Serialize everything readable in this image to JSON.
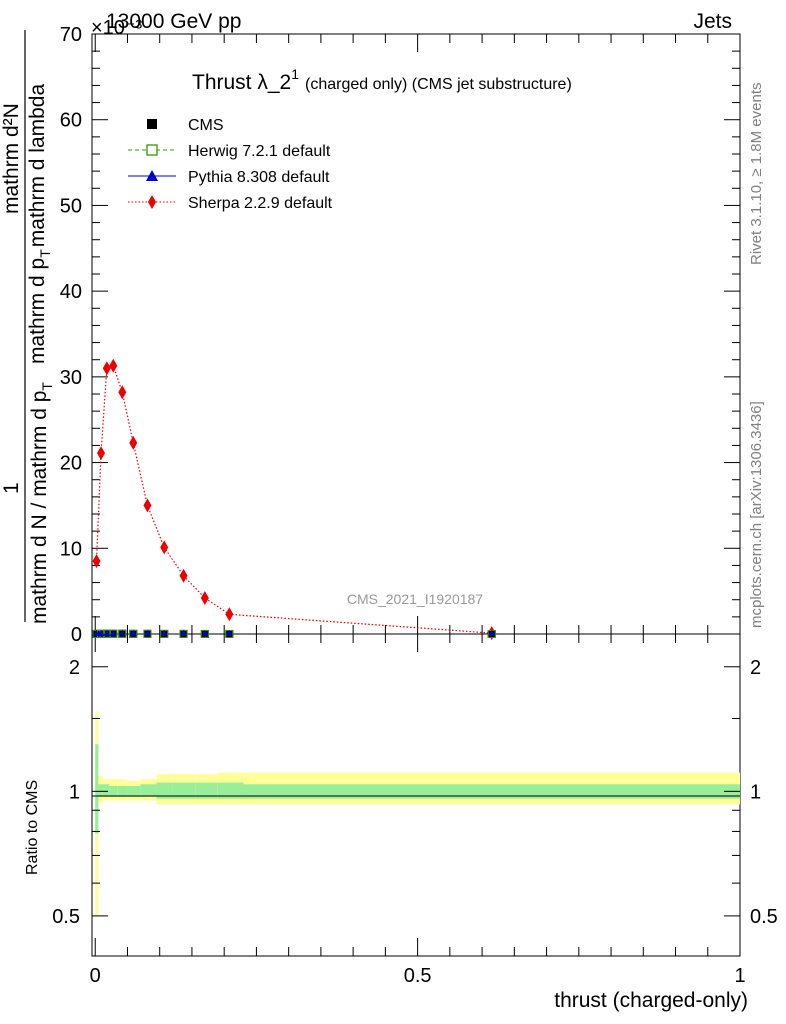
{
  "header": {
    "energy_label": "13000 GeV pp",
    "category_label": "Jets",
    "multiplier_label": "×10⁻³"
  },
  "plot_title": {
    "main": "Thrust λ_2",
    "superscript": "1",
    "suffix": "(charged only) (CMS jet substructure)"
  },
  "y_axis_label": {
    "numerator": "1",
    "denominator_line1": "mathrm d N / mathrm d p",
    "denominator_line1_sub": "T",
    "fraction_numerator": "mathrm d²N",
    "fraction_denominator": "mathrm d p",
    "fraction_denominator_sub": "T",
    "fraction_denominator_rest": "mathrm d lambda"
  },
  "ratio_y_label": "Ratio to CMS",
  "x_axis_label": "thrust (charged-only)",
  "side_text": {
    "rivet": "Rivet 3.1.10, ≥ 1.8M events",
    "mcplots": "mcplots.cern.ch [arXiv:1306.3436]"
  },
  "watermark": "CMS_2021_I1920187",
  "legend": [
    {
      "label": "CMS",
      "color": "#000000",
      "marker": "square-filled"
    },
    {
      "label": "Herwig 7.2.1 default",
      "color": "#339900",
      "marker": "square-open",
      "line": "dashed"
    },
    {
      "label": "Pythia 8.308 default",
      "color": "#0000cc",
      "marker": "triangle",
      "line": "solid"
    },
    {
      "label": "Sherpa 2.2.9 default",
      "color": "#ee0000",
      "marker": "diamond",
      "line": "dotted"
    }
  ],
  "chart_data": {
    "type": "line",
    "title": "Thrust λ_2¹ (charged only) (CMS jet substructure)",
    "xlabel": "thrust (charged-only)",
    "ylabel": "1 / (mathrm d N / mathrm d p_T) · mathrm d²N / (mathrm d p_T mathrm d lambda)",
    "y_multiplier": "×10⁻³",
    "xlim": [
      -0.005,
      1.0
    ],
    "ylim": [
      0,
      70
    ],
    "x_ticks": [
      0,
      0.5,
      1
    ],
    "x_tick_labels": [
      "0",
      "0.5",
      "1"
    ],
    "y_ticks": [
      0,
      10,
      20,
      30,
      40,
      50,
      60,
      70
    ],
    "y_tick_labels": [
      "0",
      "10",
      "20",
      "30",
      "40",
      "50",
      "60",
      "70"
    ],
    "series": [
      {
        "name": "Sherpa 2.2.9 default",
        "color": "#ee0000",
        "x": [
          0.002,
          0.009,
          0.018,
          0.028,
          0.042,
          0.059,
          0.081,
          0.107,
          0.137,
          0.17,
          0.208,
          0.615
        ],
        "values": [
          8.5,
          21.1,
          31.0,
          31.3,
          28.2,
          22.3,
          15.0,
          10.1,
          6.8,
          4.2,
          2.3,
          0.1
        ]
      },
      {
        "name": "CMS",
        "color": "#000000",
        "x": [
          0.002,
          0.009,
          0.018,
          0.028,
          0.042,
          0.059,
          0.081,
          0.107,
          0.137,
          0.17,
          0.208,
          0.615
        ],
        "values": [
          0.01,
          0.02,
          0.03,
          0.03,
          0.03,
          0.02,
          0.02,
          0.01,
          0.01,
          0.005,
          0.003,
          0.0001
        ]
      },
      {
        "name": "Herwig 7.2.1 default",
        "color": "#339900",
        "x": [
          0.002,
          0.009,
          0.018,
          0.028,
          0.042,
          0.059,
          0.081,
          0.107,
          0.137,
          0.17,
          0.208,
          0.615
        ],
        "values": [
          0.01,
          0.02,
          0.03,
          0.03,
          0.03,
          0.02,
          0.02,
          0.01,
          0.01,
          0.005,
          0.003,
          0.0001
        ]
      },
      {
        "name": "Pythia 8.308 default",
        "color": "#0000cc",
        "x": [
          0.002,
          0.009,
          0.018,
          0.028,
          0.042,
          0.059,
          0.081,
          0.107,
          0.137,
          0.17,
          0.208,
          0.615
        ],
        "values": [
          0.01,
          0.02,
          0.03,
          0.03,
          0.03,
          0.02,
          0.02,
          0.01,
          0.01,
          0.005,
          0.003,
          0.0001
        ]
      }
    ],
    "ratio_panel": {
      "ylabel": "Ratio to CMS",
      "ylim": [
        0.4,
        2.4
      ],
      "y_ticks": [
        0.5,
        1,
        2
      ],
      "y_tick_labels": [
        "0.5",
        "1",
        "2"
      ],
      "scale": "log",
      "band_edges": [
        0,
        0.005,
        0.012,
        0.022,
        0.035,
        0.05,
        0.07,
        0.095,
        0.12,
        0.155,
        0.19,
        0.23,
        1.0
      ],
      "stat_band_lower": [
        0.79,
        0.97,
        0.97,
        0.97,
        0.97,
        0.97,
        0.97,
        0.96,
        0.96,
        0.96,
        0.96,
        0.96
      ],
      "stat_band_upper": [
        1.3,
        1.04,
        1.04,
        1.03,
        1.03,
        1.03,
        1.04,
        1.05,
        1.05,
        1.05,
        1.05,
        1.04
      ],
      "total_band_lower": [
        0.5,
        0.94,
        0.95,
        0.95,
        0.95,
        0.95,
        0.95,
        0.93,
        0.93,
        0.93,
        0.93,
        0.93
      ],
      "total_band_upper": [
        1.56,
        1.09,
        1.07,
        1.07,
        1.07,
        1.06,
        1.07,
        1.1,
        1.1,
        1.1,
        1.11,
        1.11
      ],
      "colors": {
        "stat": "#99ee99",
        "total": "#ffff99"
      }
    }
  }
}
